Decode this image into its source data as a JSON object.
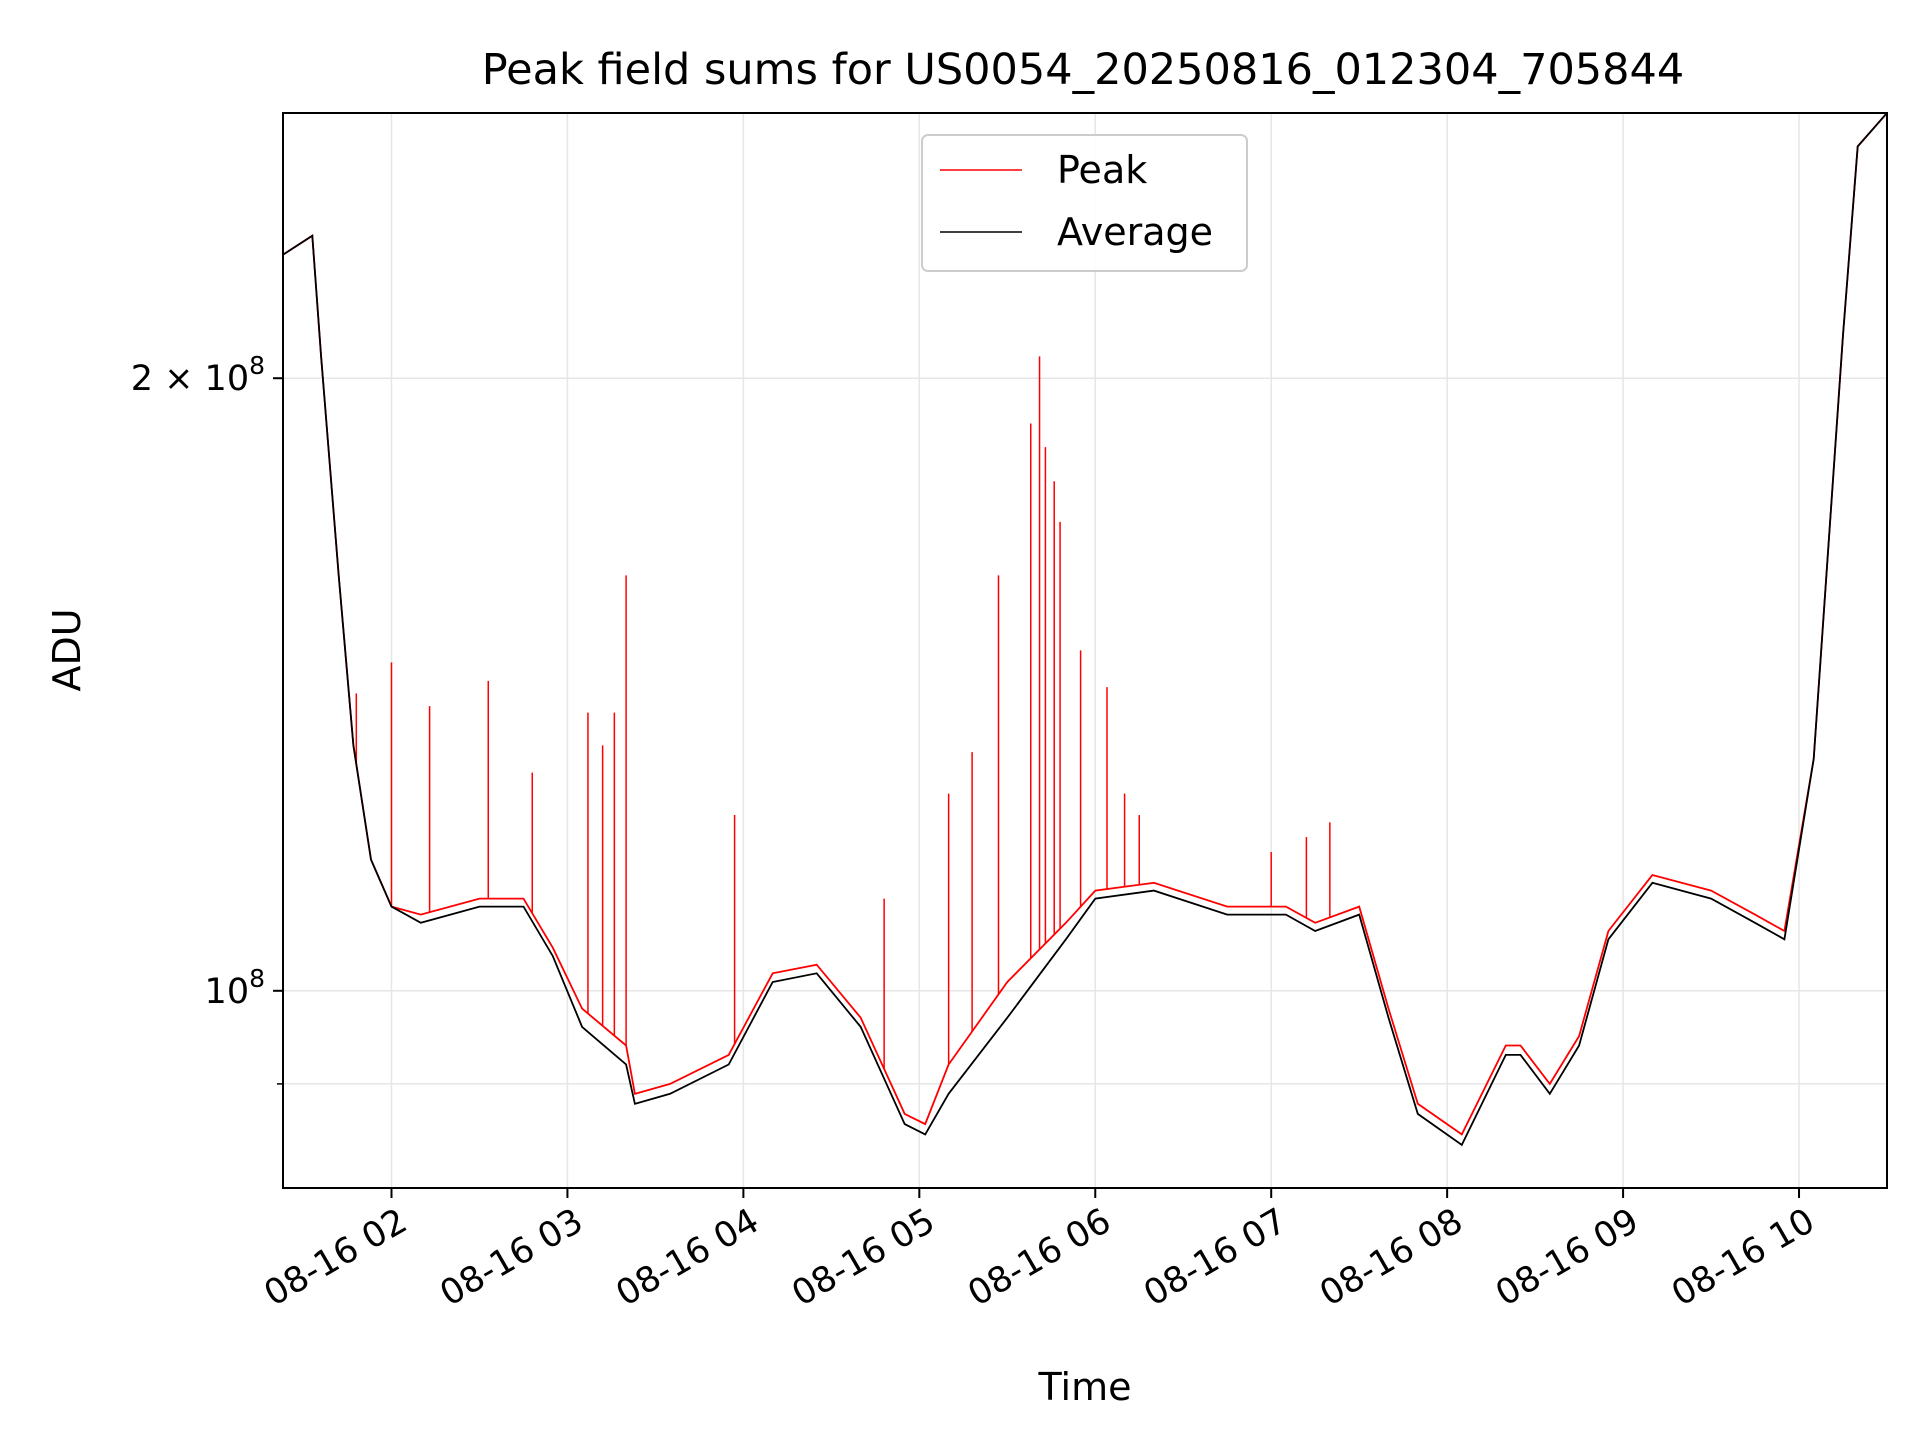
{
  "chart_data": {
    "type": "line",
    "title": "Peak field sums for US0054_20250816_012304_705844",
    "xlabel": "Time",
    "ylabel": "ADU",
    "yscale": "log",
    "grid": true,
    "legend_placement": "top-center",
    "xlim": [
      "2025-08-16 01:23",
      "2025-08-16 10:30"
    ],
    "ylim": [
      80000000,
      270000000
    ],
    "x_ticks": [
      {
        "value": "2025-08-16 02:00",
        "label": "08-16 02"
      },
      {
        "value": "2025-08-16 03:00",
        "label": "08-16 03"
      },
      {
        "value": "2025-08-16 04:00",
        "label": "08-16 04"
      },
      {
        "value": "2025-08-16 05:00",
        "label": "08-16 05"
      },
      {
        "value": "2025-08-16 06:00",
        "label": "08-16 06"
      },
      {
        "value": "2025-08-16 07:00",
        "label": "08-16 07"
      },
      {
        "value": "2025-08-16 08:00",
        "label": "08-16 08"
      },
      {
        "value": "2025-08-16 09:00",
        "label": "08-16 09"
      },
      {
        "value": "2025-08-16 10:00",
        "label": "08-16 10"
      }
    ],
    "y_ticks": [
      {
        "value": 100000000,
        "label_base": "10",
        "label_exp": "8",
        "label_coef": ""
      },
      {
        "value": 200000000,
        "label_base": "10",
        "label_exp": "8",
        "label_coef": "2 × "
      }
    ],
    "y_minor_ticks": [
      90000000
    ],
    "colors": {
      "peak": "#ff0000",
      "average": "#000000",
      "grid": "#e6e6e6"
    },
    "series": [
      {
        "name": "Average",
        "color": "#000000",
        "points": [
          [
            "2025-08-16 01:23",
            230000000
          ],
          [
            "2025-08-16 01:33",
            235000000
          ],
          [
            "2025-08-16 01:36",
            205000000
          ],
          [
            "2025-08-16 01:42",
            160000000
          ],
          [
            "2025-08-16 01:47",
            132000000
          ],
          [
            "2025-08-16 01:53",
            116000000
          ],
          [
            "2025-08-16 02:00",
            110000000
          ],
          [
            "2025-08-16 02:10",
            108000000
          ],
          [
            "2025-08-16 02:30",
            110000000
          ],
          [
            "2025-08-16 02:45",
            110000000
          ],
          [
            "2025-08-16 02:55",
            104000000
          ],
          [
            "2025-08-16 03:05",
            96000000
          ],
          [
            "2025-08-16 03:20",
            92000000
          ],
          [
            "2025-08-16 03:23",
            88000000
          ],
          [
            "2025-08-16 03:35",
            89000000
          ],
          [
            "2025-08-16 03:55",
            92000000
          ],
          [
            "2025-08-16 04:10",
            101000000
          ],
          [
            "2025-08-16 04:25",
            102000000
          ],
          [
            "2025-08-16 04:40",
            96000000
          ],
          [
            "2025-08-16 04:55",
            86000000
          ],
          [
            "2025-08-16 05:02",
            85000000
          ],
          [
            "2025-08-16 05:10",
            89000000
          ],
          [
            "2025-08-16 05:30",
            97000000
          ],
          [
            "2025-08-16 05:50",
            106000000
          ],
          [
            "2025-08-16 06:00",
            111000000
          ],
          [
            "2025-08-16 06:20",
            112000000
          ],
          [
            "2025-08-16 06:45",
            109000000
          ],
          [
            "2025-08-16 07:05",
            109000000
          ],
          [
            "2025-08-16 07:15",
            107000000
          ],
          [
            "2025-08-16 07:30",
            109000000
          ],
          [
            "2025-08-16 07:40",
            97000000
          ],
          [
            "2025-08-16 07:50",
            87000000
          ],
          [
            "2025-08-16 08:05",
            84000000
          ],
          [
            "2025-08-16 08:20",
            93000000
          ],
          [
            "2025-08-16 08:25",
            93000000
          ],
          [
            "2025-08-16 08:35",
            89000000
          ],
          [
            "2025-08-16 08:45",
            94000000
          ],
          [
            "2025-08-16 08:55",
            106000000
          ],
          [
            "2025-08-16 09:10",
            113000000
          ],
          [
            "2025-08-16 09:30",
            111000000
          ],
          [
            "2025-08-16 09:45",
            108000000
          ],
          [
            "2025-08-16 09:55",
            106000000
          ],
          [
            "2025-08-16 10:05",
            130000000
          ],
          [
            "2025-08-16 10:15",
            210000000
          ],
          [
            "2025-08-16 10:20",
            260000000
          ],
          [
            "2025-08-16 10:30",
            270000000
          ]
        ]
      },
      {
        "name": "Peak",
        "color": "#ff0000",
        "points": [
          [
            "2025-08-16 01:23",
            230000000
          ],
          [
            "2025-08-16 01:33",
            235000000
          ],
          [
            "2025-08-16 01:36",
            205000000
          ],
          [
            "2025-08-16 01:42",
            160000000
          ],
          [
            "2025-08-16 01:47",
            132000000
          ],
          [
            "2025-08-16 01:53",
            116000000
          ],
          [
            "2025-08-16 02:00",
            110000000
          ],
          [
            "2025-08-16 02:10",
            109000000
          ],
          [
            "2025-08-16 02:30",
            111000000
          ],
          [
            "2025-08-16 02:45",
            111000000
          ],
          [
            "2025-08-16 02:55",
            105000000
          ],
          [
            "2025-08-16 03:05",
            98000000
          ],
          [
            "2025-08-16 03:20",
            94000000
          ],
          [
            "2025-08-16 03:23",
            89000000
          ],
          [
            "2025-08-16 03:35",
            90000000
          ],
          [
            "2025-08-16 03:55",
            93000000
          ],
          [
            "2025-08-16 04:10",
            102000000
          ],
          [
            "2025-08-16 04:25",
            103000000
          ],
          [
            "2025-08-16 04:40",
            97000000
          ],
          [
            "2025-08-16 04:55",
            87000000
          ],
          [
            "2025-08-16 05:02",
            86000000
          ],
          [
            "2025-08-16 05:10",
            92000000
          ],
          [
            "2025-08-16 05:30",
            101000000
          ],
          [
            "2025-08-16 05:50",
            108000000
          ],
          [
            "2025-08-16 06:00",
            112000000
          ],
          [
            "2025-08-16 06:20",
            113000000
          ],
          [
            "2025-08-16 06:45",
            110000000
          ],
          [
            "2025-08-16 07:05",
            110000000
          ],
          [
            "2025-08-16 07:15",
            108000000
          ],
          [
            "2025-08-16 07:30",
            110000000
          ],
          [
            "2025-08-16 07:40",
            98000000
          ],
          [
            "2025-08-16 07:50",
            88000000
          ],
          [
            "2025-08-16 08:05",
            85000000
          ],
          [
            "2025-08-16 08:20",
            94000000
          ],
          [
            "2025-08-16 08:25",
            94000000
          ],
          [
            "2025-08-16 08:35",
            90000000
          ],
          [
            "2025-08-16 08:45",
            95000000
          ],
          [
            "2025-08-16 08:55",
            107000000
          ],
          [
            "2025-08-16 09:10",
            114000000
          ],
          [
            "2025-08-16 09:30",
            112000000
          ],
          [
            "2025-08-16 09:45",
            109000000
          ],
          [
            "2025-08-16 09:55",
            107000000
          ],
          [
            "2025-08-16 10:05",
            130000000
          ],
          [
            "2025-08-16 10:15",
            210000000
          ],
          [
            "2025-08-16 10:20",
            260000000
          ],
          [
            "2025-08-16 10:30",
            270000000
          ]
        ],
        "spikes": [
          [
            "2025-08-16 01:48",
            140000000
          ],
          [
            "2025-08-16 02:00",
            145000000
          ],
          [
            "2025-08-16 02:13",
            138000000
          ],
          [
            "2025-08-16 02:33",
            142000000
          ],
          [
            "2025-08-16 02:48",
            128000000
          ],
          [
            "2025-08-16 03:07",
            137000000
          ],
          [
            "2025-08-16 03:12",
            132000000
          ],
          [
            "2025-08-16 03:16",
            137000000
          ],
          [
            "2025-08-16 03:20",
            160000000
          ],
          [
            "2025-08-16 03:57",
            122000000
          ],
          [
            "2025-08-16 04:48",
            111000000
          ],
          [
            "2025-08-16 05:10",
            125000000
          ],
          [
            "2025-08-16 05:18",
            131000000
          ],
          [
            "2025-08-16 05:27",
            160000000
          ],
          [
            "2025-08-16 05:38",
            190000000
          ],
          [
            "2025-08-16 05:41",
            205000000
          ],
          [
            "2025-08-16 05:43",
            185000000
          ],
          [
            "2025-08-16 05:46",
            178000000
          ],
          [
            "2025-08-16 05:48",
            170000000
          ],
          [
            "2025-08-16 05:55",
            147000000
          ],
          [
            "2025-08-16 06:04",
            141000000
          ],
          [
            "2025-08-16 06:10",
            125000000
          ],
          [
            "2025-08-16 06:15",
            122000000
          ],
          [
            "2025-08-16 07:00",
            117000000
          ],
          [
            "2025-08-16 07:12",
            119000000
          ],
          [
            "2025-08-16 07:20",
            121000000
          ]
        ]
      }
    ]
  }
}
